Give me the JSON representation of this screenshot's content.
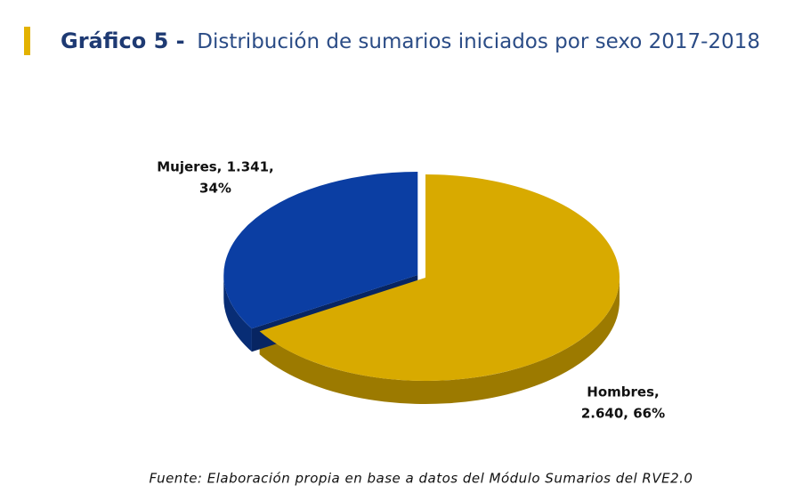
{
  "chart_data": {
    "type": "pie3d",
    "title": "Gráfico 5 -",
    "subtitle": "Distribución de sumarios iniciados por sexo 2017-2018",
    "categories": [
      "Mujeres",
      "Hombres"
    ],
    "values": [
      1341,
      2640
    ],
    "value_labels": [
      [
        "Mujeres, 1.341,",
        "34%"
      ],
      [
        "Hombres,",
        "2.640, 66%"
      ]
    ],
    "colors": [
      "#0b3ea3",
      "#d8aa00"
    ],
    "source": "Fuente: Elaboración propia en base a datos del Módulo Sumarios del RVE2.0"
  }
}
